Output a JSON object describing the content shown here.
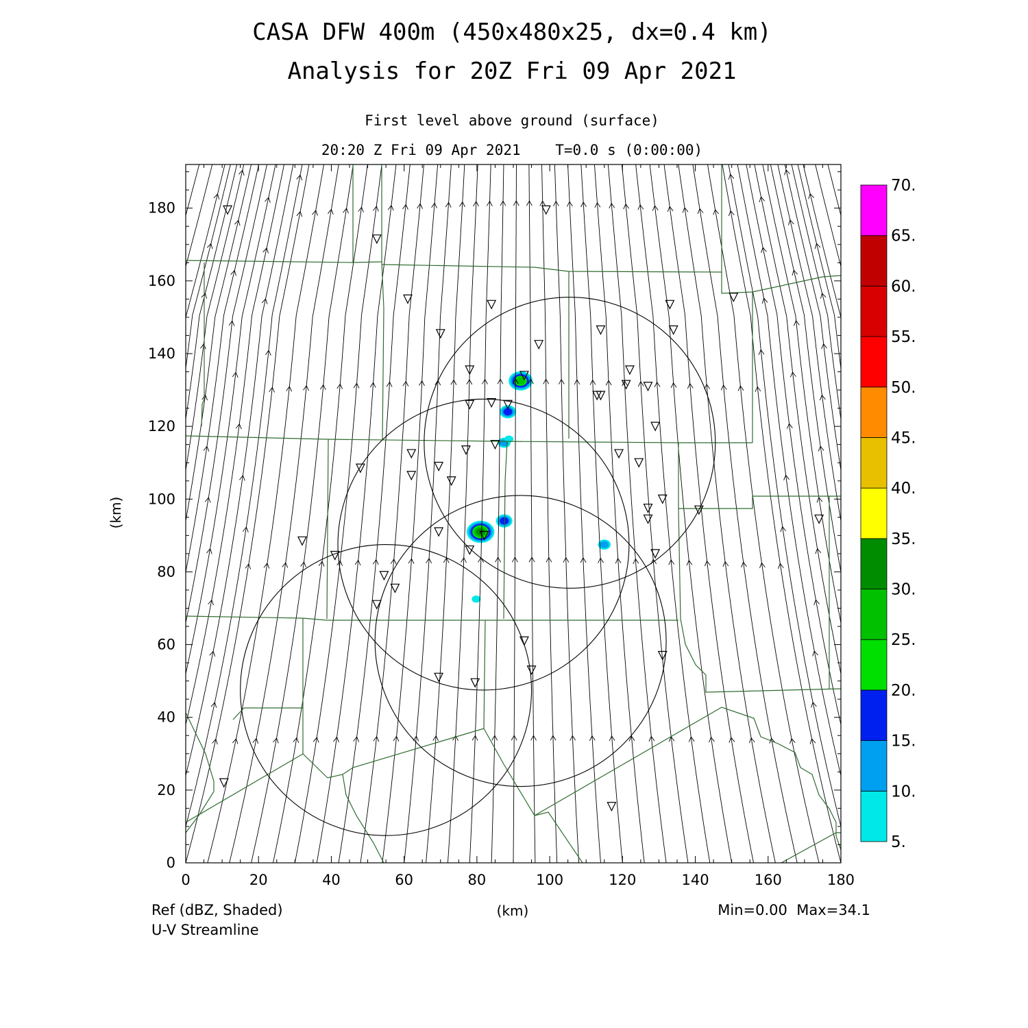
{
  "title": {
    "line1": "CASA DFW 400m (450x480x25, dx=0.4 km)",
    "line2": "Analysis for 20Z Fri 09 Apr 2021"
  },
  "subtitle": {
    "level": "First level above ground (surface)",
    "time": "20:20 Z Fri 09 Apr 2021    T=0.0 s (0:00:00)"
  },
  "axes": {
    "x_label": "(km)",
    "y_label": "(km)",
    "x_range": [
      0,
      180
    ],
    "y_range": [
      0,
      192
    ],
    "x_ticks": [
      "0",
      "20",
      "40",
      "60",
      "80",
      "100",
      "120",
      "140",
      "160",
      "180"
    ],
    "y_ticks": [
      "0",
      "20",
      "40",
      "60",
      "80",
      "100",
      "120",
      "140",
      "160",
      "180"
    ]
  },
  "footer": {
    "field": "Ref (dBZ, Shaded)",
    "overlay": "U-V Streamline",
    "minmax": "Min=0.00  Max=34.1"
  },
  "colorbar": {
    "labels": [
      "5.",
      "10.",
      "15.",
      "20.",
      "25.",
      "30.",
      "35.",
      "40.",
      "45.",
      "50.",
      "55.",
      "60.",
      "65.",
      "70."
    ],
    "colors": [
      "#00e8e8",
      "#00a0f0",
      "#0020f0",
      "#00e000",
      "#00c000",
      "#008c00",
      "#ffff00",
      "#e8c000",
      "#ff8c00",
      "#ff0000",
      "#d80000",
      "#c00000",
      "#ff00ff"
    ]
  },
  "colors": {
    "border": "#2e6b2e",
    "streamline": "#000000",
    "range_ring": "#000000"
  },
  "map_data": {
    "radar_rings": [
      {
        "cx": 105.5,
        "cy": 115.5,
        "r": 40
      },
      {
        "cx": 81.8,
        "cy": 87.5,
        "r": 40
      },
      {
        "cx": 92.0,
        "cy": 61.0,
        "r": 40
      },
      {
        "cx": 55.0,
        "cy": 47.5,
        "r": 40
      }
    ],
    "stations": [
      [
        11.5,
        179.5
      ],
      [
        52.5,
        171.5
      ],
      [
        99,
        179.5
      ],
      [
        61,
        155
      ],
      [
        84,
        153.5
      ],
      [
        70,
        145.5
      ],
      [
        97,
        142.5
      ],
      [
        114,
        146.5
      ],
      [
        133,
        153.5
      ],
      [
        134,
        146.5
      ],
      [
        150.5,
        155.5
      ],
      [
        78,
        135.5
      ],
      [
        122,
        135.5
      ],
      [
        93,
        134
      ],
      [
        121,
        131.5
      ],
      [
        127,
        131
      ],
      [
        113,
        128.5
      ],
      [
        114,
        128.5
      ],
      [
        78,
        126
      ],
      [
        84,
        126.5
      ],
      [
        88.5,
        126
      ],
      [
        129,
        120
      ],
      [
        62,
        112.5
      ],
      [
        119,
        112.5
      ],
      [
        62,
        106.5
      ],
      [
        69.5,
        109
      ],
      [
        124.5,
        110
      ],
      [
        48,
        108.5
      ],
      [
        85,
        115
      ],
      [
        77,
        113.5
      ],
      [
        73,
        105
      ],
      [
        131,
        100
      ],
      [
        127,
        97.5
      ],
      [
        127,
        94.5
      ],
      [
        141,
        97
      ],
      [
        174,
        94.5
      ],
      [
        32,
        88.5
      ],
      [
        41,
        84.5
      ],
      [
        69.5,
        91
      ],
      [
        78,
        86
      ],
      [
        82,
        90
      ],
      [
        129,
        85
      ],
      [
        54.5,
        79
      ],
      [
        57.5,
        75.5
      ],
      [
        52.5,
        71
      ],
      [
        93,
        61
      ],
      [
        131,
        57
      ],
      [
        95,
        53
      ],
      [
        69.5,
        51
      ],
      [
        79.5,
        49.5
      ],
      [
        10.5,
        22
      ],
      [
        117,
        15.5
      ]
    ],
    "echoes": [
      {
        "x": 92.0,
        "y": 132.5,
        "dbz": 25
      },
      {
        "x": 88.5,
        "y": 124.0,
        "dbz": 15
      },
      {
        "x": 87.5,
        "y": 115.5,
        "dbz": 12
      },
      {
        "x": 88.8,
        "y": 116.5,
        "dbz": 8
      },
      {
        "x": 81.0,
        "y": 91.0,
        "dbz": 30
      },
      {
        "x": 87.5,
        "y": 94.0,
        "dbz": 15
      },
      {
        "x": 115.0,
        "y": 87.5,
        "dbz": 10
      },
      {
        "x": 79.8,
        "y": 72.5,
        "dbz": 6
      }
    ]
  }
}
